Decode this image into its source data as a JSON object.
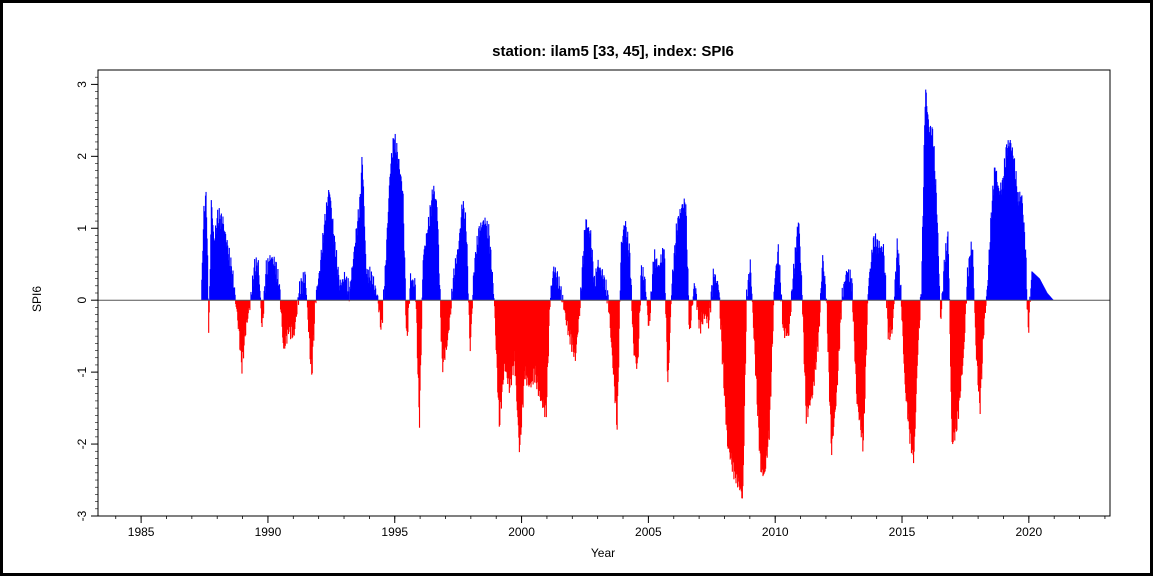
{
  "chart_data": {
    "type": "bar",
    "title": "station: ilam5 [33, 45], index: SPI6",
    "xlabel": "Year",
    "ylabel": "SPI6",
    "xlim": [
      1983.3,
      2023.2
    ],
    "ylim": [
      -3.0,
      3.2
    ],
    "x_ticks": [
      1985,
      1990,
      1995,
      2000,
      2005,
      2010,
      2015,
      2020
    ],
    "y_ticks": [
      -3,
      -2,
      -1,
      0,
      1,
      2,
      3
    ],
    "zero_line": true,
    "grid": false,
    "colors": {
      "positive": "#0000ff",
      "negative": "#ff0000",
      "axis": "#000000"
    },
    "anchors": [
      [
        1987.35,
        0.0
      ],
      [
        1987.45,
        1.2
      ],
      [
        1987.55,
        1.45
      ],
      [
        1987.65,
        -0.5
      ],
      [
        1987.75,
        1.4
      ],
      [
        1987.85,
        0.8
      ],
      [
        1988.0,
        1.15
      ],
      [
        1988.2,
        1.1
      ],
      [
        1988.4,
        0.7
      ],
      [
        1988.6,
        0.3
      ],
      [
        1988.8,
        -0.3
      ],
      [
        1988.95,
        -0.9
      ],
      [
        1989.1,
        -0.4
      ],
      [
        1989.3,
        0.0
      ],
      [
        1989.45,
        0.45
      ],
      [
        1989.6,
        0.5
      ],
      [
        1989.75,
        -0.4
      ],
      [
        1989.9,
        0.4
      ],
      [
        1990.1,
        0.6
      ],
      [
        1990.3,
        0.45
      ],
      [
        1990.45,
        0.1
      ],
      [
        1990.6,
        -0.7
      ],
      [
        1990.8,
        -0.35
      ],
      [
        1991.0,
        -0.5
      ],
      [
        1991.2,
        0.1
      ],
      [
        1991.45,
        0.35
      ],
      [
        1991.7,
        -1.05
      ],
      [
        1991.85,
        0.0
      ],
      [
        1992.0,
        0.35
      ],
      [
        1992.2,
        1.0
      ],
      [
        1992.4,
        1.55
      ],
      [
        1992.6,
        0.8
      ],
      [
        1992.8,
        0.2
      ],
      [
        1993.0,
        0.3
      ],
      [
        1993.2,
        0.1
      ],
      [
        1993.45,
        0.9
      ],
      [
        1993.6,
        1.3
      ],
      [
        1993.7,
        2.0
      ],
      [
        1993.85,
        0.4
      ],
      [
        1994.05,
        0.3
      ],
      [
        1994.3,
        0.05
      ],
      [
        1994.45,
        -0.4
      ],
      [
        1994.6,
        0.35
      ],
      [
        1994.8,
        1.8
      ],
      [
        1994.95,
        2.25
      ],
      [
        1995.1,
        2.0
      ],
      [
        1995.3,
        1.5
      ],
      [
        1995.45,
        -0.6
      ],
      [
        1995.6,
        0.3
      ],
      [
        1995.8,
        0.2
      ],
      [
        1995.95,
        -1.7
      ],
      [
        1996.1,
        0.6
      ],
      [
        1996.3,
        1.0
      ],
      [
        1996.5,
        1.55
      ],
      [
        1996.65,
        1.3
      ],
      [
        1996.85,
        -0.9
      ],
      [
        1997.05,
        -0.6
      ],
      [
        1997.3,
        0.3
      ],
      [
        1997.5,
        0.75
      ],
      [
        1997.65,
        1.35
      ],
      [
        1997.8,
        1.0
      ],
      [
        1997.95,
        -0.7
      ],
      [
        1998.1,
        0.4
      ],
      [
        1998.3,
        0.95
      ],
      [
        1998.5,
        1.1
      ],
      [
        1998.7,
        0.9
      ],
      [
        1998.9,
        0.0
      ],
      [
        1999.1,
        -1.7
      ],
      [
        1999.3,
        -0.9
      ],
      [
        1999.5,
        -1.2
      ],
      [
        1999.7,
        -0.8
      ],
      [
        1999.9,
        -2.1
      ],
      [
        2000.1,
        -1.0
      ],
      [
        2000.3,
        -1.2
      ],
      [
        2000.5,
        -1.0
      ],
      [
        2000.75,
        -1.4
      ],
      [
        2000.95,
        -1.55
      ],
      [
        2001.1,
        0.0
      ],
      [
        2001.25,
        0.45
      ],
      [
        2001.45,
        0.2
      ],
      [
        2001.6,
        0.0
      ],
      [
        2001.75,
        -0.3
      ],
      [
        2001.9,
        -0.5
      ],
      [
        2002.1,
        -0.8
      ],
      [
        2002.3,
        0.0
      ],
      [
        2002.5,
        1.1
      ],
      [
        2002.7,
        0.9
      ],
      [
        2002.85,
        0.2
      ],
      [
        2003.0,
        0.5
      ],
      [
        2003.2,
        0.3
      ],
      [
        2003.4,
        0.0
      ],
      [
        2003.6,
        -1.0
      ],
      [
        2003.75,
        -1.75
      ],
      [
        2003.9,
        0.7
      ],
      [
        2004.05,
        1.1
      ],
      [
        2004.25,
        0.6
      ],
      [
        2004.4,
        -0.7
      ],
      [
        2004.55,
        -0.95
      ],
      [
        2004.7,
        0.4
      ],
      [
        2004.85,
        0.25
      ],
      [
        2005.0,
        -0.4
      ],
      [
        2005.2,
        0.6
      ],
      [
        2005.4,
        0.45
      ],
      [
        2005.6,
        0.7
      ],
      [
        2005.75,
        -1.2
      ],
      [
        2005.9,
        0.2
      ],
      [
        2006.1,
        1.0
      ],
      [
        2006.3,
        1.3
      ],
      [
        2006.45,
        1.35
      ],
      [
        2006.6,
        -0.45
      ],
      [
        2006.8,
        0.25
      ],
      [
        2007.0,
        -0.35
      ],
      [
        2007.2,
        -0.2
      ],
      [
        2007.35,
        -0.3
      ],
      [
        2007.55,
        0.35
      ],
      [
        2007.75,
        0.2
      ],
      [
        2007.9,
        -0.8
      ],
      [
        2008.1,
        -2.0
      ],
      [
        2008.3,
        -2.3
      ],
      [
        2008.5,
        -2.5
      ],
      [
        2008.7,
        -2.75
      ],
      [
        2008.85,
        0.0
      ],
      [
        2009.0,
        0.5
      ],
      [
        2009.2,
        -0.9
      ],
      [
        2009.4,
        -2.3
      ],
      [
        2009.55,
        -2.45
      ],
      [
        2009.75,
        -1.8
      ],
      [
        2009.95,
        0.25
      ],
      [
        2010.1,
        0.7
      ],
      [
        2010.3,
        -0.4
      ],
      [
        2010.5,
        -0.5
      ],
      [
        2010.7,
        0.35
      ],
      [
        2010.9,
        1.15
      ],
      [
        2011.05,
        0.0
      ],
      [
        2011.2,
        -1.6
      ],
      [
        2011.45,
        -1.3
      ],
      [
        2011.7,
        -0.45
      ],
      [
        2011.85,
        0.6
      ],
      [
        2012.0,
        0.0
      ],
      [
        2012.2,
        -2.1
      ],
      [
        2012.4,
        -1.3
      ],
      [
        2012.6,
        0.0
      ],
      [
        2012.8,
        0.4
      ],
      [
        2013.0,
        0.25
      ],
      [
        2013.2,
        -1.4
      ],
      [
        2013.45,
        -2.0
      ],
      [
        2013.65,
        0.2
      ],
      [
        2013.85,
        0.8
      ],
      [
        2014.05,
        0.75
      ],
      [
        2014.25,
        0.7
      ],
      [
        2014.45,
        -0.5
      ],
      [
        2014.6,
        -0.4
      ],
      [
        2014.8,
        0.8
      ],
      [
        2014.95,
        0.0
      ],
      [
        2015.1,
        -1.2
      ],
      [
        2015.3,
        -1.9
      ],
      [
        2015.45,
        -2.2
      ],
      [
        2015.6,
        -0.7
      ],
      [
        2015.75,
        0.2
      ],
      [
        2015.9,
        2.95
      ],
      [
        2016.05,
        2.35
      ],
      [
        2016.2,
        2.3
      ],
      [
        2016.35,
        1.3
      ],
      [
        2016.5,
        -0.3
      ],
      [
        2016.65,
        0.5
      ],
      [
        2016.8,
        0.9
      ],
      [
        2016.95,
        -2.0
      ],
      [
        2017.15,
        -1.7
      ],
      [
        2017.4,
        -0.8
      ],
      [
        2017.55,
        0.3
      ],
      [
        2017.75,
        0.8
      ],
      [
        2017.9,
        -0.7
      ],
      [
        2018.05,
        -1.5
      ],
      [
        2018.2,
        -0.4
      ],
      [
        2018.35,
        0.2
      ],
      [
        2018.5,
        1.2
      ],
      [
        2018.65,
        1.85
      ],
      [
        2018.8,
        1.5
      ],
      [
        2018.95,
        1.6
      ],
      [
        2019.1,
        2.1
      ],
      [
        2019.25,
        2.2
      ],
      [
        2019.4,
        1.9
      ],
      [
        2019.55,
        1.4
      ],
      [
        2019.7,
        1.45
      ],
      [
        2019.85,
        0.7
      ],
      [
        2019.95,
        -0.45
      ],
      [
        2020.1,
        0.4
      ],
      [
        2020.4,
        0.3
      ],
      [
        2020.7,
        0.1
      ],
      [
        2020.95,
        0.0
      ]
    ]
  }
}
